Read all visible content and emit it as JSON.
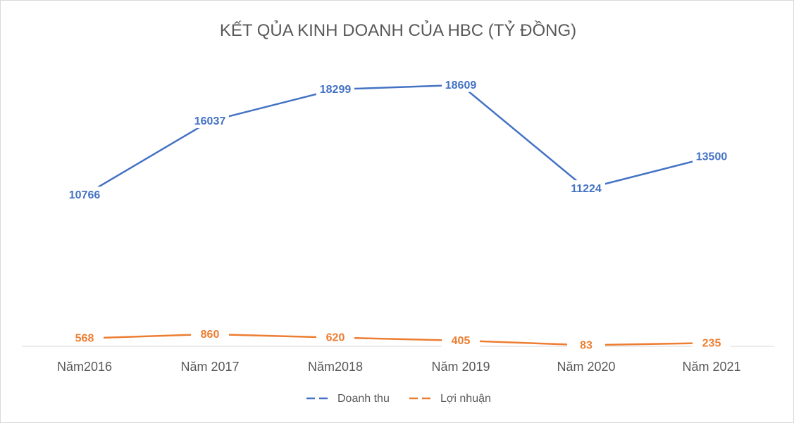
{
  "chart_data": {
    "type": "line",
    "title": "KẾT QỦA KINH DOANH CỦA HBC (TỶ ĐỒNG)",
    "categories": [
      "Năm2016",
      "Năm 2017",
      "Năm2018",
      "Năm 2019",
      "Năm 2020",
      "Năm 2021"
    ],
    "series": [
      {
        "name": "Doanh thu",
        "color": "#4472c4",
        "values": [
          10766,
          16037,
          18299,
          18609,
          11224,
          13500
        ]
      },
      {
        "name": "Lợi nhuận",
        "color": "#ed7d31",
        "values": [
          568,
          860,
          620,
          405,
          83,
          235
        ]
      }
    ],
    "ylim": [
      0,
      20000
    ],
    "grid": false,
    "y_axis_shown": false,
    "legend_position": "bottom",
    "data_labels": true
  }
}
